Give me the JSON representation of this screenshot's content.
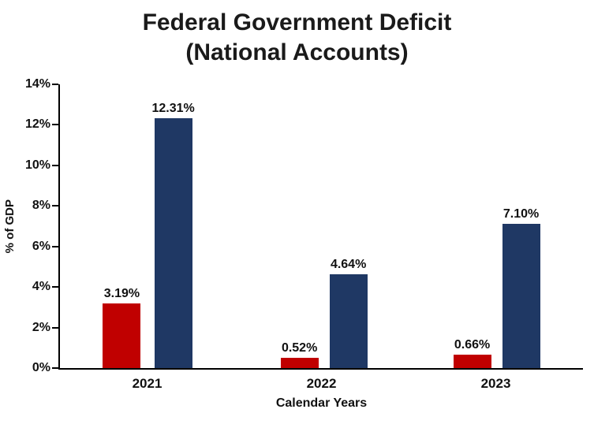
{
  "title": {
    "line1": "Federal Government Deficit",
    "line2": "(National Accounts)"
  },
  "chart_data": {
    "type": "bar",
    "title": "Federal Government Deficit (National Accounts)",
    "categories": [
      "2021",
      "2022",
      "2023"
    ],
    "series": [
      {
        "name": "red-series",
        "color": "#C00000",
        "values": [
          3.19,
          0.52,
          0.66
        ],
        "labels": [
          "3.19%",
          "0.52%",
          "0.66%"
        ]
      },
      {
        "name": "navy-series",
        "color": "#1F3864",
        "values": [
          12.31,
          4.64,
          7.1
        ],
        "labels": [
          "12.31%",
          "4.64%",
          "7.10%"
        ]
      }
    ],
    "xlabel": "Calendar Years",
    "ylabel": "% of GDP",
    "ylim": [
      0,
      14
    ],
    "yticks": [
      "14%",
      "12%",
      "10%",
      "8%",
      "6%",
      "4%",
      "2%",
      "0%"
    ],
    "grid": false,
    "legend_position": "none"
  }
}
